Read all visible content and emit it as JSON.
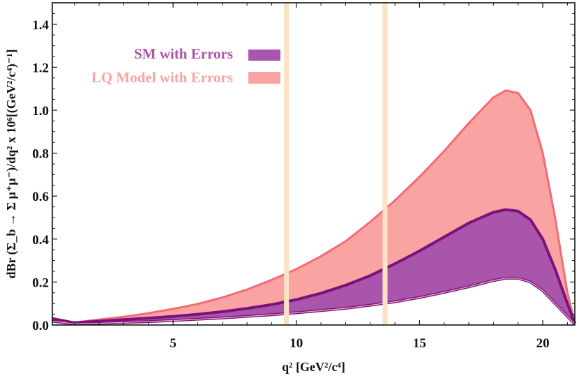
{
  "chart_data": {
    "type": "area",
    "xlabel": "q² [GeV²/c⁴]",
    "ylabel": "dBr (Σ_b → Σ μ⁺μ⁻)/dq² x 10⁶[(GeV²/c⁴)⁻¹]",
    "xlim": [
      0.1,
      21.3
    ],
    "ylim": [
      0,
      1.5
    ],
    "xticks": [
      5,
      10,
      15,
      20
    ],
    "yticks": [
      "0.0",
      "0.2",
      "0.4",
      "0.6",
      "0.8",
      "1.0",
      "1.2",
      "1.4"
    ],
    "grid": false,
    "legend_position": "top-left",
    "x": [
      0.1,
      1,
      2,
      3,
      4,
      5,
      6,
      7,
      8,
      9,
      10,
      11,
      12,
      13,
      14,
      15,
      16,
      17,
      18,
      18.5,
      19,
      19.5,
      20,
      20.5,
      21,
      21.3
    ],
    "series": [
      {
        "name": "SM with Errors",
        "color": "#a855ab",
        "edge_color": "#7a1279",
        "lower": [
          0.018,
          0.005,
          0.008,
          0.012,
          0.016,
          0.021,
          0.027,
          0.033,
          0.04,
          0.048,
          0.057,
          0.067,
          0.078,
          0.092,
          0.108,
          0.128,
          0.152,
          0.178,
          0.207,
          0.218,
          0.218,
          0.2,
          0.16,
          0.1,
          0.04,
          0.005
        ],
        "upper": [
          0.03,
          0.01,
          0.018,
          0.025,
          0.032,
          0.04,
          0.05,
          0.062,
          0.077,
          0.095,
          0.118,
          0.148,
          0.185,
          0.23,
          0.285,
          0.345,
          0.41,
          0.475,
          0.525,
          0.537,
          0.53,
          0.49,
          0.4,
          0.26,
          0.1,
          0.008
        ]
      },
      {
        "name": "LQ Model with Errors",
        "color": "#f9a3a3",
        "edge_color": "#f26b75",
        "lower": [
          0.018,
          0.005,
          0.008,
          0.012,
          0.016,
          0.021,
          0.027,
          0.033,
          0.04,
          0.048,
          0.057,
          0.067,
          0.078,
          0.092,
          0.108,
          0.128,
          0.152,
          0.178,
          0.207,
          0.218,
          0.218,
          0.2,
          0.16,
          0.1,
          0.04,
          0.005
        ],
        "upper": [
          0.03,
          0.012,
          0.025,
          0.038,
          0.055,
          0.075,
          0.098,
          0.128,
          0.165,
          0.21,
          0.26,
          0.32,
          0.39,
          0.48,
          0.58,
          0.69,
          0.81,
          0.94,
          1.06,
          1.092,
          1.08,
          1.0,
          0.8,
          0.5,
          0.15,
          0.01
        ]
      }
    ],
    "vertical_bands": [
      {
        "x_from": 9.5,
        "x_to": 9.7,
        "color": "#fde1c4"
      },
      {
        "x_from": 13.5,
        "x_to": 13.7,
        "color": "#fde1c4"
      }
    ]
  }
}
